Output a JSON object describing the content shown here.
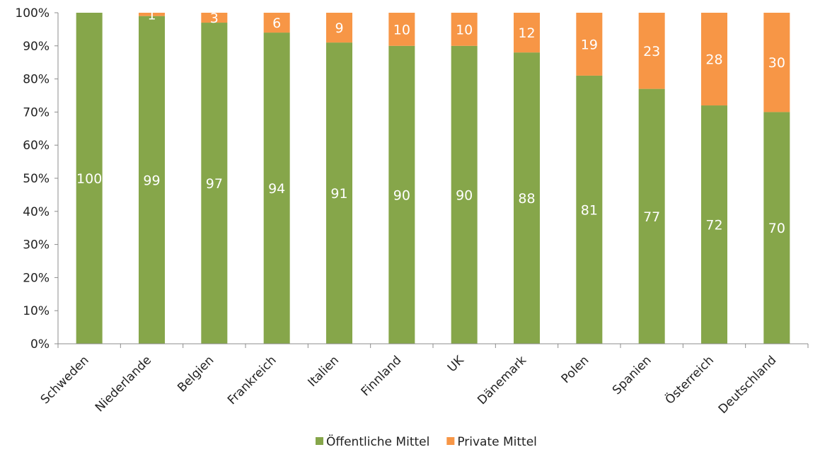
{
  "chart_data": {
    "type": "bar",
    "stacked": true,
    "categories": [
      "Schweden",
      "Niederlande",
      "Belgien",
      "Frankreich",
      "Italien",
      "Finnland",
      "UK",
      "Dänemark",
      "Polen",
      "Spanien",
      "Österreich",
      "Deutschland"
    ],
    "series": [
      {
        "name": "Öffentliche Mittel",
        "color": "#86a64a",
        "values": [
          100,
          99,
          97,
          94,
          91,
          90,
          90,
          88,
          81,
          77,
          72,
          70
        ]
      },
      {
        "name": "Private Mittel",
        "color": "#f79646",
        "values": [
          0,
          1,
          3,
          6,
          9,
          10,
          10,
          12,
          19,
          23,
          28,
          30
        ]
      }
    ],
    "segment_labels": [
      [
        "100",
        "99",
        "97",
        "94",
        "91",
        "90",
        "90",
        "88",
        "81",
        "77",
        "72",
        "70"
      ],
      [
        "",
        "1",
        "3",
        "6",
        "9",
        "10",
        "10",
        "12",
        "19",
        "23",
        "28",
        "30"
      ]
    ],
    "y_ticks": [
      "0%",
      "10%",
      "20%",
      "30%",
      "40%",
      "50%",
      "60%",
      "70%",
      "80%",
      "90%",
      "100%"
    ],
    "ylim": [
      0,
      100
    ],
    "title": "",
    "xlabel": "",
    "ylabel": "",
    "grid": false,
    "legend_position": "bottom-center"
  }
}
